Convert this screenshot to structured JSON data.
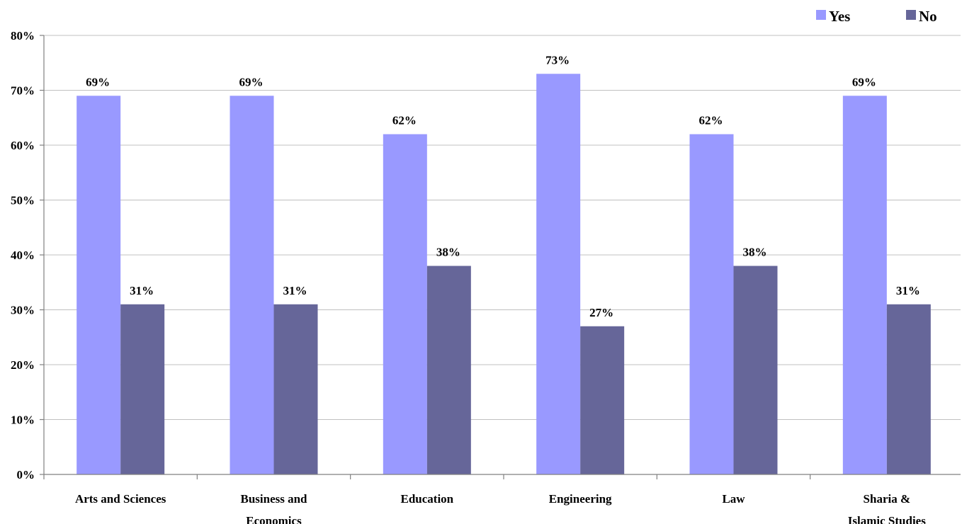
{
  "chart_data": {
    "type": "bar",
    "categories": [
      "Arts and Sciences",
      "Business and Economics",
      "Education",
      "Engineering",
      "Law",
      "Sharia & Islamic Studies"
    ],
    "series": [
      {
        "name": "Yes",
        "color": "#9999ff",
        "values": [
          69,
          69,
          62,
          73,
          62,
          69
        ],
        "labels": [
          "69%",
          "69%",
          "62%",
          "73%",
          "62%",
          "69%"
        ]
      },
      {
        "name": "No",
        "color": "#666699",
        "values": [
          31,
          31,
          38,
          27,
          38,
          31
        ],
        "labels": [
          "31%",
          "31%",
          "38%",
          "27%",
          "38%",
          "31%"
        ]
      }
    ],
    "yticks": [
      0,
      10,
      20,
      30,
      40,
      50,
      60,
      70,
      80
    ],
    "ytick_labels": [
      "0%",
      "10%",
      "20%",
      "30%",
      "40%",
      "50%",
      "60%",
      "70%",
      "80%"
    ],
    "ylim": [
      0,
      80
    ],
    "grid": true,
    "legend_position": "top-right"
  }
}
